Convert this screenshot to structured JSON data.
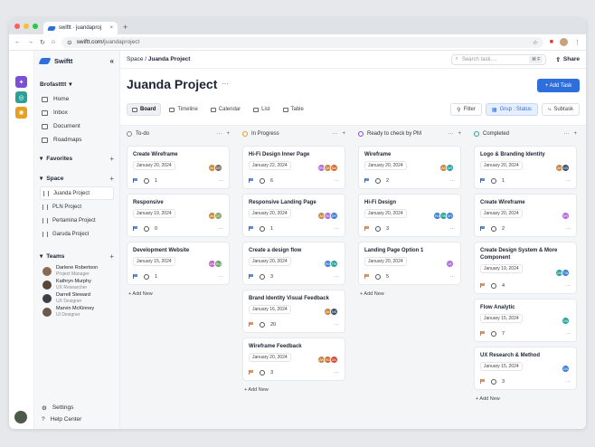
{
  "browser": {
    "tab_title": "swiftt · juandaproj",
    "url_host": "swiftt.com/",
    "url_path": "juandaproject"
  },
  "app": {
    "name": "Swiftt",
    "workspace": "Brofastttt"
  },
  "nav": [
    {
      "label": "Home"
    },
    {
      "label": "Inbox"
    },
    {
      "label": "Document"
    },
    {
      "label": "Roadmaps"
    }
  ],
  "favorites": {
    "label": "Favorites"
  },
  "space": {
    "label": "Space",
    "items": [
      {
        "label": "Juanda Project"
      },
      {
        "label": "PLN Project"
      },
      {
        "label": "Pertamina Project"
      },
      {
        "label": "Garuda Project"
      }
    ]
  },
  "teams": {
    "label": "Teams",
    "members": [
      {
        "name": "Darlene Robertson",
        "role": "Project Manager"
      },
      {
        "name": "Kathryn Murphy",
        "role": "UX Researcher"
      },
      {
        "name": "Darrell Steward",
        "role": "UX Designer"
      },
      {
        "name": "Marvin McKinney",
        "role": "UI Designer"
      }
    ]
  },
  "footer": {
    "settings": "Settings",
    "help": "Help Center"
  },
  "header": {
    "crumb_parent": "Space",
    "crumb_sep": " / ",
    "crumb_current": "Juanda Project",
    "search_placeholder": "Search task....",
    "search_kbd": "⌘ F",
    "share": "Share"
  },
  "page": {
    "title": "Juanda Project",
    "add_task": "+ Add Task"
  },
  "views": {
    "tabs": [
      {
        "label": "Board"
      },
      {
        "label": "Timeline"
      },
      {
        "label": "Calendar"
      },
      {
        "label": "List"
      },
      {
        "label": "Table"
      }
    ],
    "filter": "Filter",
    "group": "Grup : Status",
    "subtask": "Subtask"
  },
  "add_new": "+ Add New",
  "columns": [
    {
      "title": "To-do",
      "color": "#888888",
      "cards": [
        {
          "title": "Create Wireframe",
          "date": "January 20, 2024",
          "flag": "#2f6fdc",
          "comments": "1",
          "avatars": [
            [
              "#c9873f",
              "AK"
            ],
            [
              "#7a6a5a",
              "DR"
            ]
          ]
        },
        {
          "title": "Responsive",
          "date": "January 19, 2024",
          "flag": "#2f6fdc",
          "comments": "0",
          "avatars": [
            [
              "#c9873f",
              "AK"
            ],
            [
              "#8ba36b",
              "GT"
            ]
          ]
        },
        {
          "title": "Development Website",
          "date": "January 15, 2024",
          "flag": "#2f6fdc",
          "comments": "1",
          "avatars": [
            [
              "#c15ec9",
              "DN"
            ],
            [
              "#6aa26f",
              "RU"
            ]
          ]
        }
      ]
    },
    {
      "title": "In Progress",
      "color": "#e8a020",
      "cards": [
        {
          "title": "Hi-Fi Design Inner Page",
          "date": "January 22, 2024",
          "flag": "#2f6fdc",
          "comments": "6",
          "avatars": [
            [
              "#b06bd8",
              "RD"
            ],
            [
              "#c9873f",
              "AK"
            ],
            [
              "#d06b2f",
              "NM"
            ]
          ]
        },
        {
          "title": "Responsive Landing Page",
          "date": "January 20, 2024",
          "flag": "#2f6fdc",
          "comments": "1",
          "avatars": [
            [
              "#c9873f",
              "AK"
            ],
            [
              "#b06bd8",
              "RD"
            ],
            [
              "#3d7fd1",
              "ER"
            ]
          ]
        },
        {
          "title": "Create a design flow",
          "date": "January 20, 2024",
          "flag": "#2f6fdc",
          "comments": "3",
          "avatars": [
            [
              "#3d7fd1",
              "RD"
            ],
            [
              "#2aa198",
              "TW"
            ]
          ]
        },
        {
          "title": "Brand Identity Visual Feedback",
          "date": "January 16, 2024",
          "flag": "#e8702a",
          "comments": "20",
          "avatars": [
            [
              "#c9873f",
              "AK"
            ],
            [
              "#36536b",
              "NS"
            ]
          ]
        },
        {
          "title": "Wireframe Feedback",
          "date": "January 20, 2024",
          "flag": "#e8702a",
          "comments": "3",
          "avatars": [
            [
              "#c9873f",
              "AK"
            ],
            [
              "#d06b2f",
              "RD"
            ],
            [
              "#d44a3a",
              "AK"
            ]
          ]
        }
      ]
    },
    {
      "title": "Ready to check by PM",
      "color": "#7b4fd6",
      "cards": [
        {
          "title": "Wireframe",
          "date": "January 20, 2024",
          "flag": "#2f6fdc",
          "comments": "2",
          "avatars": [
            [
              "#c9873f",
              "AK"
            ],
            [
              "#2aa198",
              "DR"
            ]
          ]
        },
        {
          "title": "Hi-Fi Design",
          "date": "January 20, 2024",
          "flag": "#e8702a",
          "comments": "3",
          "avatars": [
            [
              "#3d7fd1",
              "RD"
            ],
            [
              "#2aa198",
              "TW"
            ],
            [
              "#3d7fd1",
              "KR"
            ]
          ]
        },
        {
          "title": "Landing Page Option 1",
          "date": "January 20, 2024",
          "flag": "#e8702a",
          "comments": "5",
          "avatars": [
            [
              "#b06bd8",
              "VE"
            ]
          ]
        }
      ]
    },
    {
      "title": "Completed",
      "color": "#2aa198",
      "cards": [
        {
          "title": "Logo & Branding Identity",
          "date": "January 20, 2024",
          "flag": "#2f6fdc",
          "comments": "1",
          "avatars": [
            [
              "#c9873f",
              "AK"
            ],
            [
              "#36536b",
              "NS"
            ]
          ]
        },
        {
          "title": "Create Wireframe",
          "date": "January 20, 2024",
          "flag": "#2f6fdc",
          "comments": "2",
          "avatars": [
            [
              "#b06bd8",
              "ER"
            ]
          ]
        },
        {
          "title": "Create Design System & More Component",
          "date": "January 19, 2024",
          "flag": "#e8702a",
          "comments": "4",
          "avatars": [
            [
              "#2aa198",
              "DN"
            ],
            [
              "#3d7fd1",
              "TW"
            ]
          ]
        },
        {
          "title": "Flow Analytic",
          "date": "January 15, 2024",
          "flag": "#e8702a",
          "comments": "7",
          "avatars": [
            [
              "#2aa198",
              "DN"
            ]
          ]
        },
        {
          "title": "UX Research & Method",
          "date": "January 15, 2024",
          "flag": "#e8702a",
          "comments": "3",
          "avatars": [
            [
              "#3d7fd1",
              "DN"
            ]
          ]
        }
      ]
    }
  ]
}
